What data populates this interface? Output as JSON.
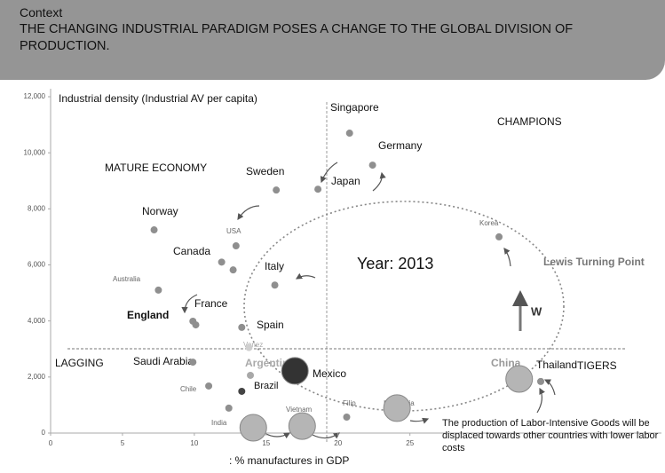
{
  "header": {
    "context": "Context",
    "headline": "THE CHANGING INDUSTRIAL PARADIGM POSES A CHANGE TO THE GLOBAL DIVISION OF PRODUCTION."
  },
  "chart_data": {
    "type": "scatter",
    "y_label": "Industrial density (Industrial AV per capita)",
    "x_label": ": % manufactures in GDP",
    "annotations": [
      "MATURE ECONOMY",
      "CHAMPIONS",
      "LAGGING",
      "TIGERS",
      "Year: 2013",
      "Lewis Turning Point",
      "W",
      "The production of Labor-Intensive Goods will be displaced towards other countries with lower labor costs"
    ],
    "xlim": [
      0,
      42.5
    ],
    "ylim": [
      0,
      12000
    ],
    "xticks": [
      0,
      5,
      10,
      15,
      20,
      25
    ],
    "yticks": [
      0,
      {
        "value": 2000,
        "label": "2,000"
      },
      {
        "value": 4000,
        "label": "4,000"
      },
      {
        "value": 6000,
        "label": "6,000"
      },
      {
        "value": 8000,
        "label": "8,000"
      },
      {
        "value": 10000,
        "label": "10,000"
      },
      {
        "value": 12000,
        "label": "12,000"
      }
    ],
    "points": [
      {
        "label": "Singapore",
        "x": 20.8,
        "y": 10700,
        "size": 1,
        "color": "#8f8f8f"
      },
      {
        "label": "Germany",
        "x": 22.4,
        "y": 9560,
        "size": 1,
        "color": "#8f8f8f"
      },
      {
        "label": "Japan",
        "x": 18.6,
        "y": 8700,
        "size": 1,
        "color": "#8f8f8f"
      },
      {
        "label": "Sweden",
        "x": 15.7,
        "y": 8670,
        "size": 1,
        "color": "#8f8f8f"
      },
      {
        "label": "USA",
        "x": 12.9,
        "y": 6680,
        "size": 1,
        "color": "#8f8f8f"
      },
      {
        "label": "Canada",
        "x": 11.9,
        "y": 6100,
        "size": 1,
        "color": "#8f8f8f"
      },
      {
        "label": null,
        "x": 12.7,
        "y": 5820,
        "size": 1,
        "color": "#8f8f8f"
      },
      {
        "label": "Norway",
        "x": 7.2,
        "y": 7250,
        "size": 1,
        "color": "#8f8f8f"
      },
      {
        "label": "Australia",
        "x": 7.5,
        "y": 5100,
        "size": 1,
        "color": "#8f8f8f"
      },
      {
        "label": "Italy",
        "x": 15.6,
        "y": 5280,
        "size": 1,
        "color": "#8f8f8f"
      },
      {
        "label": "France",
        "x": 9.9,
        "y": 3990,
        "size": 1,
        "color": "#8f8f8f"
      },
      {
        "label": "England",
        "x": 10.1,
        "y": 3860,
        "size": 1,
        "color": "#8f8f8f"
      },
      {
        "label": "Spain",
        "x": 13.3,
        "y": 3770,
        "size": 1,
        "color": "#8f8f8f"
      },
      {
        "label": "Venez",
        "x": 13.8,
        "y": 3050,
        "size": 1,
        "color": "#cfcfcf"
      },
      {
        "label": "Saudi Arabia",
        "x": 9.9,
        "y": 2530,
        "size": 1,
        "color": "#8f8f8f"
      },
      {
        "label": "Chile",
        "x": 11,
        "y": 1680,
        "size": 1,
        "color": "#8f8f8f"
      },
      {
        "label": "Argentina",
        "x": 13.9,
        "y": 2060,
        "size": 1,
        "color": "#a8a8a8"
      },
      {
        "label": "Brazil",
        "x": 13.3,
        "y": 1490,
        "size": 1,
        "color": "#444444"
      },
      {
        "label": "Mexico",
        "x": 17,
        "y": 2220,
        "size": 3,
        "color": "#333333"
      },
      {
        "label": "Korea",
        "x": 31.2,
        "y": 7000,
        "size": 1,
        "color": "#8f8f8f"
      },
      {
        "label": "China",
        "x": 32.6,
        "y": 1930,
        "size": 3,
        "color": "#b5b5b5"
      },
      {
        "label": "Thailand",
        "x": 34.1,
        "y": 1840,
        "size": 1,
        "color": "#8f8f8f"
      },
      {
        "label": "Indonesia",
        "x": 24.1,
        "y": 890,
        "size": 3,
        "color": "#b5b5b5"
      },
      {
        "label": "Filip",
        "x": 20.6,
        "y": 570,
        "size": 1,
        "color": "#8f8f8f"
      },
      {
        "label": "Vietnam",
        "x": 17.5,
        "y": 250,
        "size": 3,
        "color": "#b5b5b5"
      },
      {
        "label": "India",
        "x": 14.1,
        "y": 190,
        "size": 3,
        "color": "#b5b5b5"
      },
      {
        "label": null,
        "x": 12.4,
        "y": 890,
        "size": 1,
        "color": "#8f8f8f"
      }
    ]
  }
}
